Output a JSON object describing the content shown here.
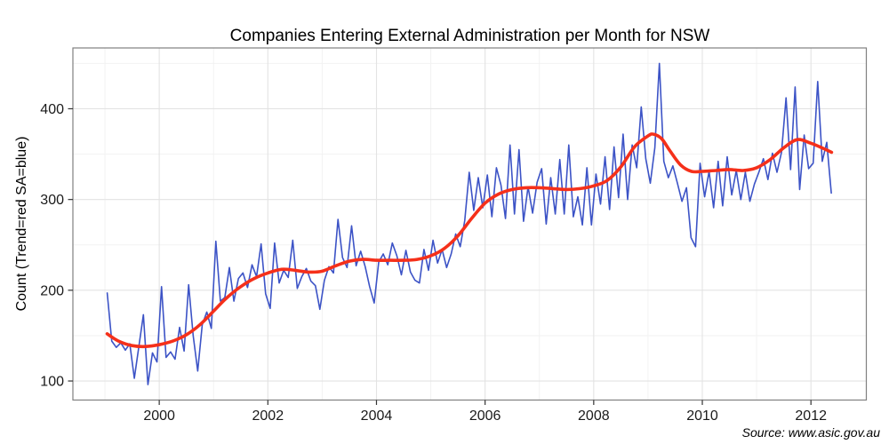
{
  "page": {
    "title": "Companies Entering External Administration per Month for NSW",
    "source_note": "Source: www.asic.gov.au"
  },
  "chart_data": {
    "type": "line",
    "title": "Companies Entering External Administration per Month for NSW",
    "xlabel": "",
    "ylabel": "Count (Trend=red SA=blue)",
    "x_ticks": [
      2000,
      2002,
      2004,
      2006,
      2008,
      2010,
      2012
    ],
    "x_minor_ticks": [
      1999,
      2001,
      2003,
      2005,
      2007,
      2009,
      2011
    ],
    "y_ticks": [
      100,
      200,
      300,
      400
    ],
    "y_minor_ticks": [
      150,
      250,
      350,
      450
    ],
    "xlim": [
      1998.41,
      2013.02
    ],
    "ylim": [
      79,
      467
    ],
    "grid": true,
    "legend": "none",
    "colors": {
      "sa_blue": "#3C53C6",
      "trend_red": "#F5301A",
      "grid_major": "#E3E3E3",
      "grid_minor": "#F2F2F2",
      "panel_border": "#808080",
      "tick_mark": "#333333",
      "tick_label": "#1A1A1A"
    },
    "series": [
      {
        "name": "SA",
        "kind": "monthly",
        "start_year": 1999,
        "start_month": 1,
        "end_label": "May 2012",
        "values": [
          197,
          144,
          137,
          142,
          134,
          141,
          103,
          138,
          173,
          96,
          131,
          121,
          204,
          126,
          132,
          124,
          159,
          133,
          206,
          150,
          111,
          162,
          176,
          158,
          254,
          188,
          192,
          225,
          188,
          213,
          219,
          203,
          228,
          215,
          251,
          196,
          180,
          252,
          208,
          222,
          214,
          255,
          202,
          215,
          224,
          210,
          205,
          179,
          211,
          226,
          219,
          278,
          236,
          225,
          271,
          227,
          243,
          226,
          204,
          186,
          231,
          240,
          228,
          252,
          238,
          217,
          244,
          220,
          211,
          208,
          245,
          222,
          255,
          230,
          245,
          225,
          240,
          262,
          248,
          277,
          330,
          288,
          324,
          291,
          327,
          281,
          335,
          316,
          279,
          360,
          284,
          355,
          276,
          314,
          285,
          319,
          334,
          273,
          324,
          284,
          344,
          284,
          360,
          281,
          303,
          272,
          335,
          272,
          328,
          295,
          347,
          289,
          358,
          302,
          372,
          300,
          360,
          335,
          402,
          345,
          318,
          357,
          450,
          342,
          324,
          337,
          318,
          298,
          313,
          258,
          248,
          340,
          303,
          331,
          291,
          342,
          293,
          347,
          305,
          332,
          300,
          330,
          298,
          317,
          330,
          345,
          322,
          351,
          330,
          352,
          412,
          333,
          424,
          311,
          371,
          334,
          340,
          430,
          342,
          363,
          307
        ]
      },
      {
        "name": "Trend",
        "kind": "smooth",
        "x": [
          1999.04,
          1999.25,
          1999.5,
          1999.75,
          2000,
          2000.25,
          2000.5,
          2000.75,
          2001,
          2001.25,
          2001.5,
          2001.75,
          2002,
          2002.25,
          2002.5,
          2002.75,
          2003,
          2003.25,
          2003.5,
          2003.75,
          2004,
          2004.25,
          2004.5,
          2004.75,
          2005,
          2005.25,
          2005.5,
          2005.75,
          2006,
          2006.25,
          2006.5,
          2006.75,
          2007,
          2007.25,
          2007.5,
          2007.75,
          2008,
          2008.25,
          2008.5,
          2008.75,
          2009,
          2009.1,
          2009.25,
          2009.4,
          2009.6,
          2009.8,
          2010,
          2010.25,
          2010.5,
          2010.75,
          2011,
          2011.25,
          2011.5,
          2011.75,
          2012,
          2012.2,
          2012.38
        ],
        "values": [
          152,
          144,
          139,
          138,
          140,
          144,
          151,
          162,
          177,
          192,
          204,
          213,
          219,
          223,
          222,
          220,
          221,
          227,
          232,
          234,
          233,
          233,
          233,
          234,
          238,
          246,
          260,
          279,
          296,
          306,
          311,
          313,
          313,
          312,
          311,
          312,
          315,
          321,
          336,
          358,
          370,
          372,
          367,
          354,
          338,
          331,
          331,
          332,
          333,
          332,
          335,
          344,
          357,
          366,
          362,
          357,
          352
        ]
      }
    ]
  }
}
